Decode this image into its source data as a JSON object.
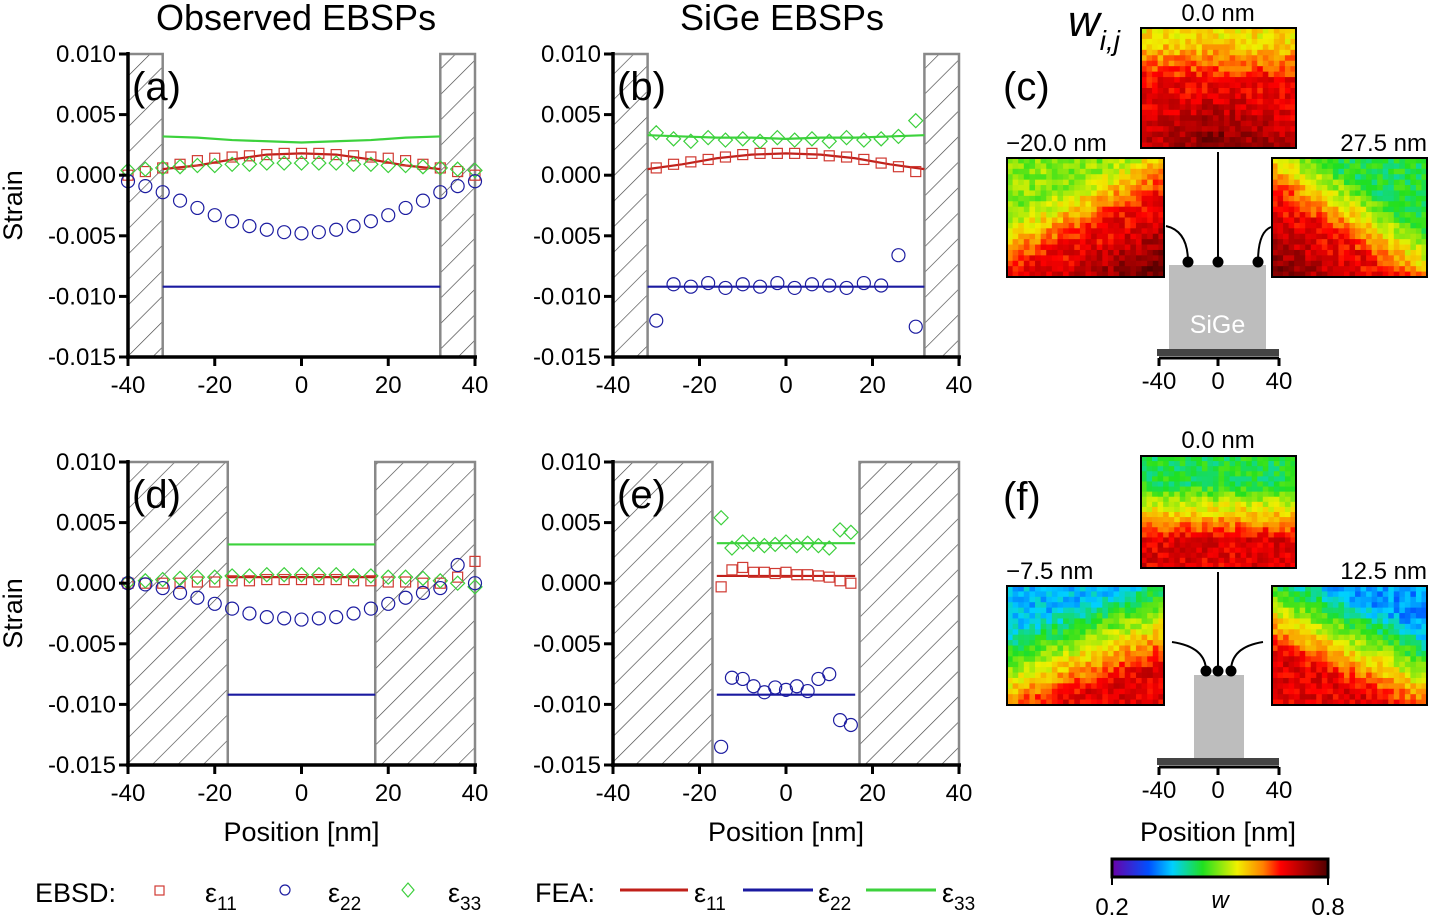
{
  "titles": {
    "left": "Observed EBSPs",
    "middle": "SiGe EBSPs",
    "weight_symbol": "w",
    "weight_sub": "i,j"
  },
  "colors": {
    "e11": "#d03a32",
    "e22": "#1c1ca0",
    "e33": "#3ccf3c",
    "fea_e11": "#c0201a",
    "fea_e22": "#1a1aa0",
    "fea_e33": "#3cd23c",
    "hatch": "#888888"
  },
  "chart_data": [
    {
      "panel": "(a)",
      "type": "scatter+line",
      "xlim": [
        -40,
        40
      ],
      "ylim": [
        -0.015,
        0.01
      ],
      "xticks": [
        "-40",
        "-20",
        "0",
        "20",
        "40"
      ],
      "yticks": [
        "0.010",
        "0.005",
        "0.000",
        "-0.005",
        "-0.010",
        "-0.015"
      ],
      "xlabel": "",
      "ylabel": "Strain",
      "hatched_regions": [
        [
          -40,
          -32
        ],
        [
          32,
          40
        ]
      ],
      "ebsd": {
        "x": [
          -40,
          -36,
          -32,
          -28,
          -24,
          -20,
          -16,
          -12,
          -8,
          -4,
          0,
          4,
          8,
          12,
          16,
          20,
          24,
          28,
          32,
          36,
          40
        ],
        "e11": [
          0,
          0.0003,
          0.0006,
          0.0009,
          0.0012,
          0.0014,
          0.0015,
          0.0016,
          0.0017,
          0.0018,
          0.0018,
          0.0018,
          0.0017,
          0.0016,
          0.0015,
          0.0014,
          0.0012,
          0.0009,
          0.0006,
          0.0003,
          0
        ],
        "e22": [
          -0.0005,
          -0.0009,
          -0.0014,
          -0.0021,
          -0.0027,
          -0.0033,
          -0.0038,
          -0.0042,
          -0.0045,
          -0.0047,
          -0.0048,
          -0.0047,
          -0.0045,
          -0.0042,
          -0.0038,
          -0.0033,
          -0.0027,
          -0.0021,
          -0.0014,
          -0.0009,
          -0.0005
        ],
        "e33": [
          0.0004,
          0.0005,
          0.0006,
          0.0007,
          0.0008,
          0.0008,
          0.0009,
          0.0009,
          0.001,
          0.001,
          0.001,
          0.001,
          0.001,
          0.0009,
          0.0009,
          0.0008,
          0.0008,
          0.0007,
          0.0006,
          0.0005,
          0.0004
        ]
      },
      "fea": {
        "x": [
          -32,
          -24,
          -16,
          -8,
          0,
          8,
          16,
          24,
          32
        ],
        "e11": [
          0.0005,
          0.0008,
          0.0013,
          0.0017,
          0.0018,
          0.0017,
          0.0013,
          0.0008,
          0.0005
        ],
        "e22": [
          -0.0092,
          -0.0092,
          -0.0092,
          -0.0092,
          -0.0092,
          -0.0092,
          -0.0092,
          -0.0092,
          -0.0092
        ],
        "e33": [
          0.0032,
          0.0031,
          0.0029,
          0.0028,
          0.0027,
          0.0028,
          0.0029,
          0.0031,
          0.0032
        ]
      }
    },
    {
      "panel": "(b)",
      "type": "scatter+line",
      "xlim": [
        -40,
        40
      ],
      "ylim": [
        -0.015,
        0.01
      ],
      "xticks": [
        "-40",
        "-20",
        "0",
        "20",
        "40"
      ],
      "yticks": [
        "0.010",
        "0.005",
        "0.000",
        "-0.005",
        "-0.010",
        "-0.015"
      ],
      "xlabel": "",
      "ylabel": "",
      "hatched_regions": [
        [
          -40,
          -32
        ],
        [
          32,
          40
        ]
      ],
      "ebsd": {
        "x": [
          -30,
          -26,
          -22,
          -18,
          -14,
          -10,
          -6,
          -2,
          2,
          6,
          10,
          14,
          18,
          22,
          26,
          30
        ],
        "e11": [
          0.0006,
          0.0009,
          0.0011,
          0.0013,
          0.0015,
          0.0017,
          0.0018,
          0.0018,
          0.0018,
          0.0018,
          0.0016,
          0.0015,
          0.0013,
          0.001,
          0.0007,
          0.0003
        ],
        "e22": [
          -0.012,
          -0.009,
          -0.0092,
          -0.0089,
          -0.0093,
          -0.009,
          -0.0092,
          -0.0089,
          -0.0093,
          -0.009,
          -0.0091,
          -0.0093,
          -0.0089,
          -0.0091,
          -0.0066,
          -0.0125
        ],
        "e33": [
          0.0035,
          0.003,
          0.0028,
          0.0031,
          0.0029,
          0.003,
          0.0028,
          0.0031,
          0.0029,
          0.003,
          0.0028,
          0.0031,
          0.0029,
          0.003,
          0.0032,
          0.0045
        ]
      },
      "fea": {
        "x": [
          -32,
          -24,
          -16,
          -8,
          0,
          8,
          16,
          24,
          32
        ],
        "e11": [
          0.0005,
          0.0009,
          0.0014,
          0.0017,
          0.0018,
          0.0017,
          0.0014,
          0.0009,
          0.0005
        ],
        "e22": [
          -0.0092,
          -0.0092,
          -0.0092,
          -0.0092,
          -0.0092,
          -0.0092,
          -0.0092,
          -0.0092,
          -0.0092
        ],
        "e33": [
          0.0033,
          0.0032,
          0.0031,
          0.0031,
          0.003,
          0.0031,
          0.0031,
          0.0032,
          0.0033
        ]
      }
    },
    {
      "panel": "(d)",
      "type": "scatter+line",
      "xlim": [
        -40,
        40
      ],
      "ylim": [
        -0.015,
        0.01
      ],
      "xticks": [
        "-40",
        "-20",
        "0",
        "20",
        "40"
      ],
      "yticks": [
        "0.010",
        "0.005",
        "0.000",
        "-0.005",
        "-0.010",
        "-0.015"
      ],
      "xlabel": "Position [nm]",
      "ylabel": "Strain",
      "hatched_regions": [
        [
          -40,
          -17
        ],
        [
          17,
          40
        ]
      ],
      "ebsd": {
        "x": [
          -40,
          -36,
          -32,
          -28,
          -24,
          -20,
          -16,
          -12,
          -8,
          -4,
          0,
          4,
          8,
          12,
          16,
          20,
          24,
          28,
          32,
          36,
          40
        ],
        "e11": [
          0,
          0,
          0,
          0,
          0.0001,
          0.0001,
          0.0002,
          0.0002,
          0.0003,
          0.0003,
          0.0003,
          0.0003,
          0.0003,
          0.0002,
          0.0002,
          0.0001,
          0.0001,
          0,
          0,
          0.0005,
          0.0018
        ],
        "e22": [
          0,
          -0.0001,
          -0.0004,
          -0.0008,
          -0.0012,
          -0.0017,
          -0.0021,
          -0.0025,
          -0.0028,
          -0.0029,
          -0.003,
          -0.0029,
          -0.0028,
          -0.0025,
          -0.0021,
          -0.0017,
          -0.0012,
          -0.0008,
          -0.0004,
          0.0015,
          0
        ],
        "e33": [
          0.0001,
          0.0002,
          0.0003,
          0.0004,
          0.0005,
          0.0005,
          0.0006,
          0.0006,
          0.0007,
          0.0007,
          0.0007,
          0.0007,
          0.0007,
          0.0006,
          0.0006,
          0.0005,
          0.0005,
          0.0004,
          0.0002,
          0,
          -0.0003
        ]
      },
      "fea": {
        "x": [
          -17,
          17
        ],
        "e11": [
          0.0005,
          0.0005
        ],
        "e22": [
          -0.0092,
          -0.0092
        ],
        "e33": [
          0.0032,
          0.0032
        ]
      }
    },
    {
      "panel": "(e)",
      "type": "scatter+line",
      "xlim": [
        -40,
        40
      ],
      "ylim": [
        -0.015,
        0.01
      ],
      "xticks": [
        "-40",
        "-20",
        "0",
        "20",
        "40"
      ],
      "yticks": [
        "0.010",
        "0.005",
        "0.000",
        "-0.005",
        "-0.010",
        "-0.015"
      ],
      "xlabel": "Position [nm]",
      "ylabel": "",
      "hatched_regions": [
        [
          -40,
          -17
        ],
        [
          17,
          40
        ]
      ],
      "ebsd": {
        "x": [
          -15,
          -12.5,
          -10,
          -7.5,
          -5,
          -2.5,
          0,
          2.5,
          5,
          7.5,
          10,
          12.5,
          15
        ],
        "e11": [
          -0.0003,
          0.0011,
          0.0013,
          0.0009,
          0.0009,
          0.0008,
          0.0009,
          0.0007,
          0.0007,
          0.0006,
          0.0005,
          0.0002,
          0
        ],
        "e22": [
          -0.0135,
          -0.0078,
          -0.0079,
          -0.0085,
          -0.009,
          -0.0086,
          -0.0088,
          -0.0085,
          -0.0089,
          -0.0079,
          -0.0075,
          -0.0113,
          -0.0117
        ],
        "e33": [
          0.0054,
          0.0029,
          0.0034,
          0.0032,
          0.0031,
          0.0032,
          0.0034,
          0.0031,
          0.0033,
          0.0031,
          0.0029,
          0.0044,
          0.0042
        ]
      },
      "fea": {
        "x": [
          -16,
          16
        ],
        "e11": [
          0.0006,
          0.0006
        ],
        "e22": [
          -0.0092,
          -0.0092
        ],
        "e33": [
          0.0033,
          0.0033
        ]
      }
    }
  ],
  "maps": {
    "c": {
      "panel": "(c)",
      "top_label": "0.0 nm",
      "left_label": "−20.0 nm",
      "right_label": "27.5 nm",
      "structure_label": "SiGe",
      "axis_ticks": [
        "-40",
        "0",
        "40"
      ]
    },
    "f": {
      "panel": "(f)",
      "top_label": "0.0 nm",
      "left_label": "−7.5 nm",
      "right_label": "12.5 nm",
      "axis_ticks": [
        "-40",
        "0",
        "40"
      ],
      "xlabel": "Position [nm]"
    }
  },
  "legend": {
    "ebsd_label": "EBSD:",
    "fea_label": "FEA:",
    "items": [
      {
        "symbol": "ε",
        "sub": "11"
      },
      {
        "symbol": "ε",
        "sub": "22"
      },
      {
        "symbol": "ε",
        "sub": "33"
      }
    ]
  },
  "colorbar": {
    "min_label": "0.2",
    "max_label": "0.8",
    "label": "w",
    "range": [
      0.2,
      0.8
    ]
  }
}
